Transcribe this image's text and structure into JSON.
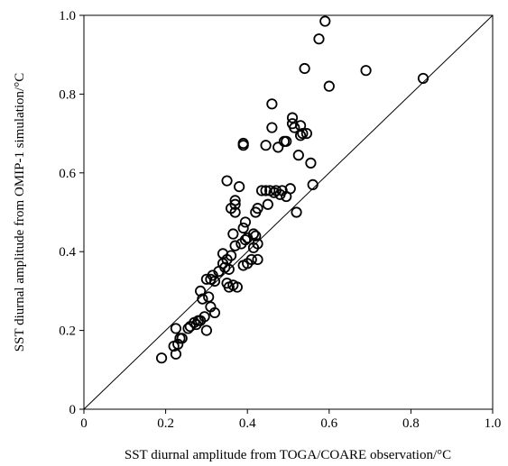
{
  "chart_data": {
    "type": "scatter",
    "title": "",
    "xlabel": "SST diurnal amplitude from TOGA/COARE observation/°C",
    "ylabel": "SST diurnal amplitude from OMIP-1 simulation/°C",
    "xlim": [
      0,
      1.0
    ],
    "ylim": [
      0,
      1.0
    ],
    "xticks": [
      "0",
      "0.2",
      "0.4",
      "0.6",
      "0.8",
      "1.0"
    ],
    "yticks": [
      "0",
      "0.2",
      "0.4",
      "0.6",
      "0.8",
      "1.0"
    ],
    "grid": false,
    "reference_line": "y = x",
    "marker": "open-circle",
    "colors": {
      "marker": "#000000",
      "line": "#000000",
      "background": "#ffffff"
    },
    "points": [
      {
        "x": 0.19,
        "y": 0.13
      },
      {
        "x": 0.22,
        "y": 0.16
      },
      {
        "x": 0.225,
        "y": 0.205
      },
      {
        "x": 0.225,
        "y": 0.14
      },
      {
        "x": 0.23,
        "y": 0.165
      },
      {
        "x": 0.235,
        "y": 0.18
      },
      {
        "x": 0.24,
        "y": 0.18
      },
      {
        "x": 0.255,
        "y": 0.205
      },
      {
        "x": 0.26,
        "y": 0.21
      },
      {
        "x": 0.27,
        "y": 0.22
      },
      {
        "x": 0.275,
        "y": 0.215
      },
      {
        "x": 0.28,
        "y": 0.225
      },
      {
        "x": 0.285,
        "y": 0.225
      },
      {
        "x": 0.285,
        "y": 0.3
      },
      {
        "x": 0.29,
        "y": 0.28
      },
      {
        "x": 0.295,
        "y": 0.235
      },
      {
        "x": 0.3,
        "y": 0.33
      },
      {
        "x": 0.3,
        "y": 0.2
      },
      {
        "x": 0.305,
        "y": 0.285
      },
      {
        "x": 0.31,
        "y": 0.26
      },
      {
        "x": 0.31,
        "y": 0.33
      },
      {
        "x": 0.315,
        "y": 0.34
      },
      {
        "x": 0.32,
        "y": 0.245
      },
      {
        "x": 0.32,
        "y": 0.325
      },
      {
        "x": 0.33,
        "y": 0.35
      },
      {
        "x": 0.34,
        "y": 0.395
      },
      {
        "x": 0.34,
        "y": 0.37
      },
      {
        "x": 0.345,
        "y": 0.36
      },
      {
        "x": 0.35,
        "y": 0.32
      },
      {
        "x": 0.35,
        "y": 0.38
      },
      {
        "x": 0.35,
        "y": 0.58
      },
      {
        "x": 0.355,
        "y": 0.31
      },
      {
        "x": 0.355,
        "y": 0.355
      },
      {
        "x": 0.36,
        "y": 0.39
      },
      {
        "x": 0.36,
        "y": 0.51
      },
      {
        "x": 0.365,
        "y": 0.445
      },
      {
        "x": 0.365,
        "y": 0.315
      },
      {
        "x": 0.37,
        "y": 0.52
      },
      {
        "x": 0.37,
        "y": 0.5
      },
      {
        "x": 0.37,
        "y": 0.53
      },
      {
        "x": 0.37,
        "y": 0.415
      },
      {
        "x": 0.375,
        "y": 0.31
      },
      {
        "x": 0.38,
        "y": 0.565
      },
      {
        "x": 0.385,
        "y": 0.42
      },
      {
        "x": 0.39,
        "y": 0.46
      },
      {
        "x": 0.39,
        "y": 0.365
      },
      {
        "x": 0.39,
        "y": 0.67
      },
      {
        "x": 0.39,
        "y": 0.675
      },
      {
        "x": 0.395,
        "y": 0.43
      },
      {
        "x": 0.395,
        "y": 0.475
      },
      {
        "x": 0.4,
        "y": 0.37
      },
      {
        "x": 0.4,
        "y": 0.435
      },
      {
        "x": 0.41,
        "y": 0.38
      },
      {
        "x": 0.415,
        "y": 0.445
      },
      {
        "x": 0.415,
        "y": 0.41
      },
      {
        "x": 0.42,
        "y": 0.5
      },
      {
        "x": 0.42,
        "y": 0.44
      },
      {
        "x": 0.425,
        "y": 0.51
      },
      {
        "x": 0.425,
        "y": 0.42
      },
      {
        "x": 0.425,
        "y": 0.38
      },
      {
        "x": 0.435,
        "y": 0.555
      },
      {
        "x": 0.445,
        "y": 0.67
      },
      {
        "x": 0.445,
        "y": 0.555
      },
      {
        "x": 0.45,
        "y": 0.52
      },
      {
        "x": 0.455,
        "y": 0.555
      },
      {
        "x": 0.46,
        "y": 0.715
      },
      {
        "x": 0.46,
        "y": 0.775
      },
      {
        "x": 0.465,
        "y": 0.55
      },
      {
        "x": 0.47,
        "y": 0.555
      },
      {
        "x": 0.475,
        "y": 0.665
      },
      {
        "x": 0.48,
        "y": 0.545
      },
      {
        "x": 0.485,
        "y": 0.555
      },
      {
        "x": 0.49,
        "y": 0.68
      },
      {
        "x": 0.495,
        "y": 0.54
      },
      {
        "x": 0.495,
        "y": 0.68
      },
      {
        "x": 0.505,
        "y": 0.56
      },
      {
        "x": 0.51,
        "y": 0.725
      },
      {
        "x": 0.51,
        "y": 0.74
      },
      {
        "x": 0.515,
        "y": 0.715
      },
      {
        "x": 0.52,
        "y": 0.5
      },
      {
        "x": 0.525,
        "y": 0.645
      },
      {
        "x": 0.53,
        "y": 0.695
      },
      {
        "x": 0.53,
        "y": 0.72
      },
      {
        "x": 0.535,
        "y": 0.7
      },
      {
        "x": 0.54,
        "y": 0.865
      },
      {
        "x": 0.545,
        "y": 0.7
      },
      {
        "x": 0.555,
        "y": 0.625
      },
      {
        "x": 0.56,
        "y": 0.57
      },
      {
        "x": 0.575,
        "y": 0.94
      },
      {
        "x": 0.59,
        "y": 0.985
      },
      {
        "x": 0.6,
        "y": 0.82
      },
      {
        "x": 0.69,
        "y": 0.86
      },
      {
        "x": 0.83,
        "y": 0.84
      }
    ]
  }
}
